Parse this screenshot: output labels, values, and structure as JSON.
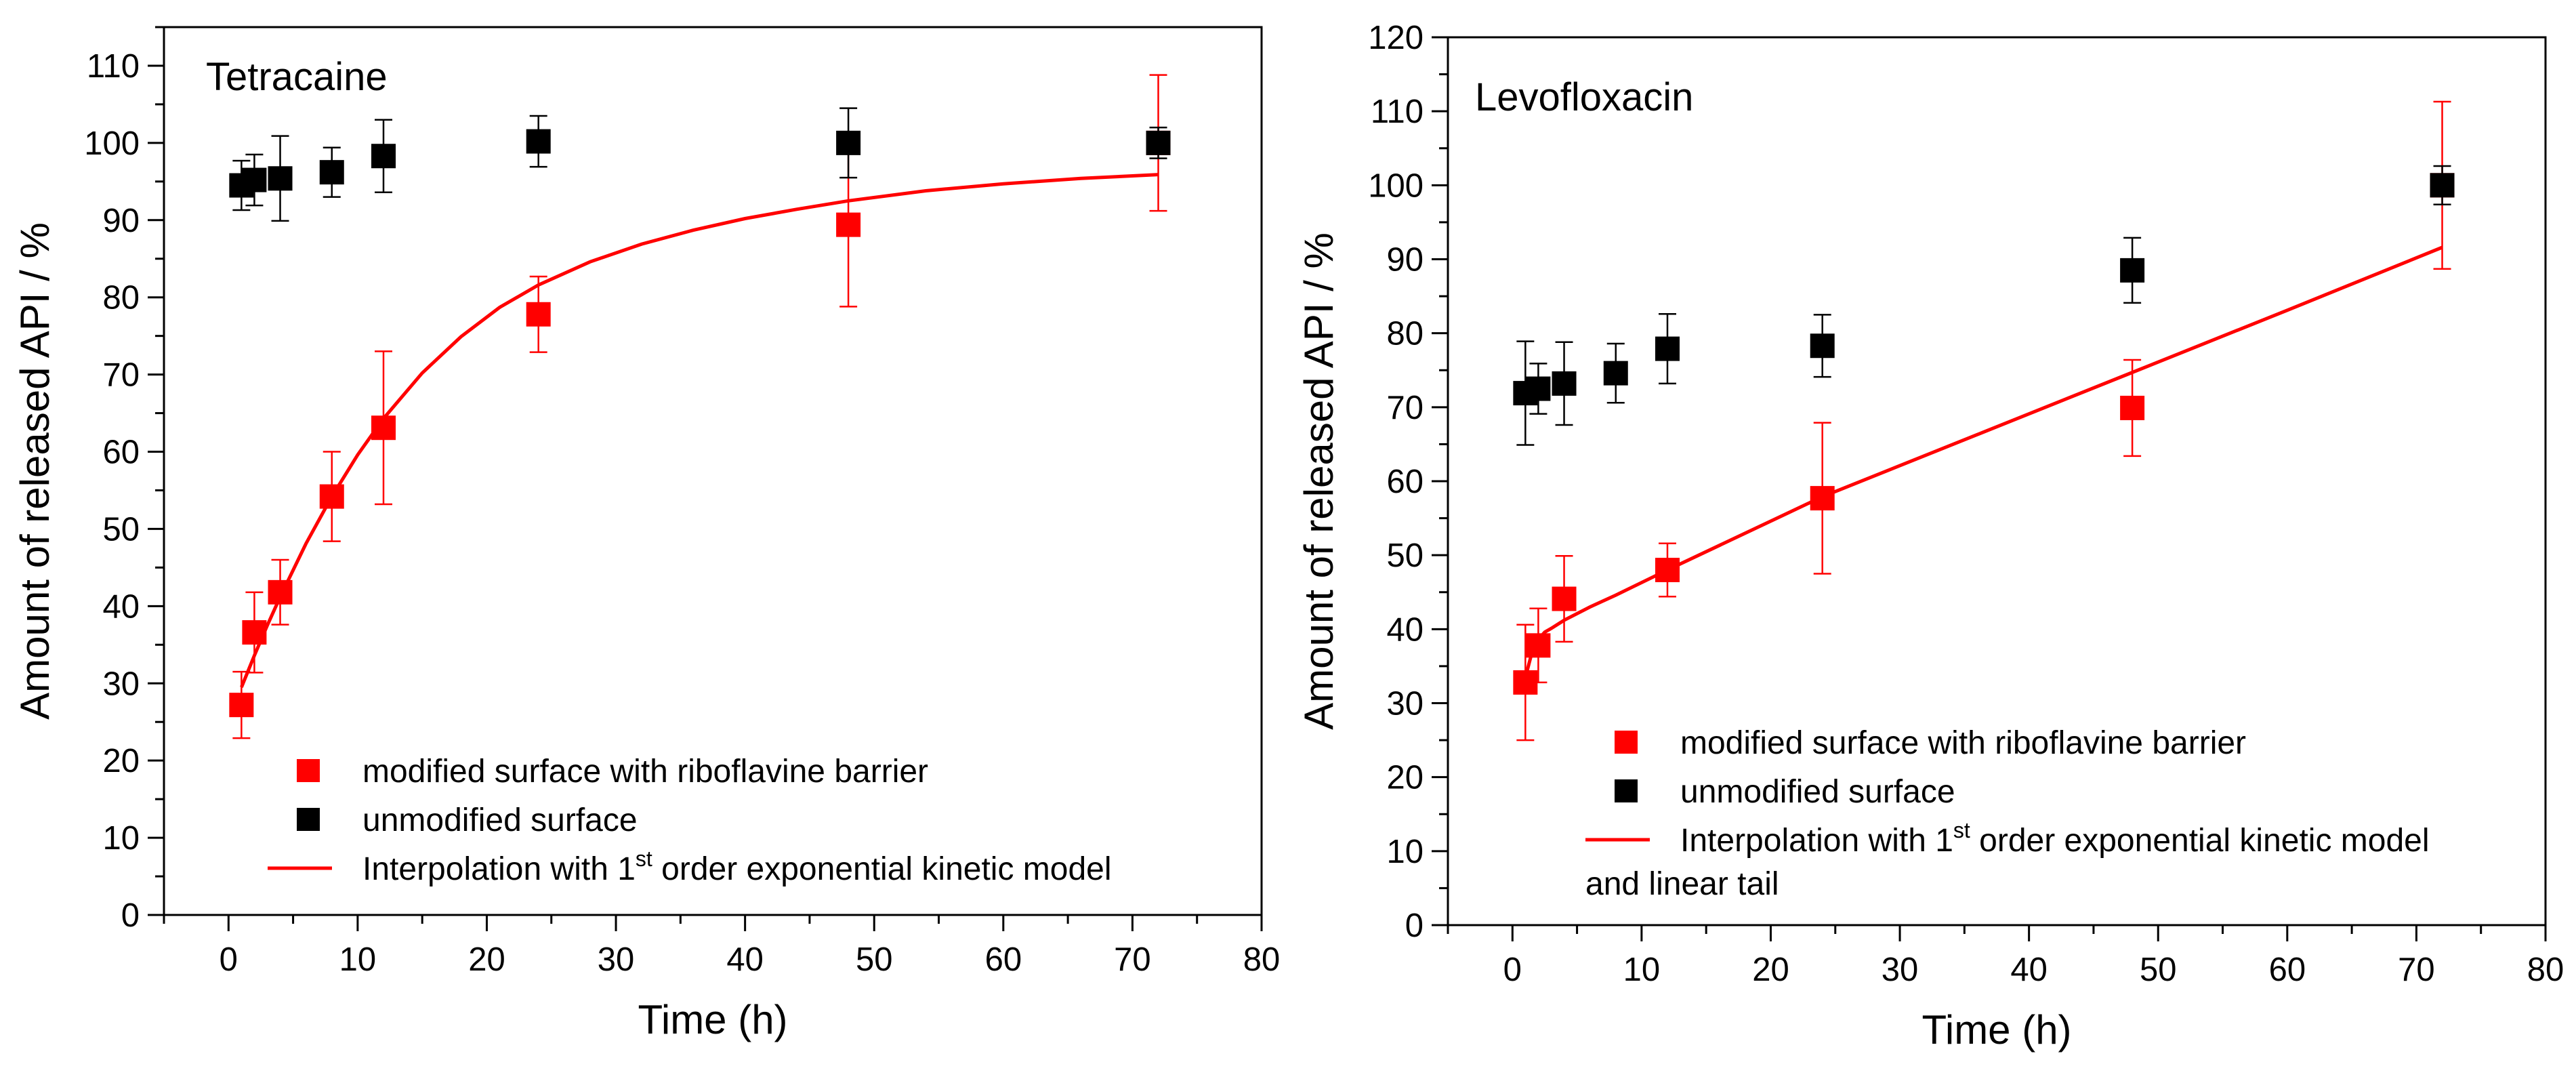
{
  "chart_data": [
    {
      "type": "scatter",
      "title": "Tetracaine",
      "xlabel": "Time (h)",
      "ylabel": "Amount of released API / %",
      "xlim": [
        -5,
        80
      ],
      "ylim": [
        0,
        115
      ],
      "x_ticks": [
        0,
        10,
        20,
        30,
        40,
        50,
        60,
        70,
        80
      ],
      "y_ticks": [
        0,
        10,
        20,
        30,
        40,
        50,
        60,
        70,
        80,
        90,
        100,
        110
      ],
      "grid": false,
      "legend_position": "bottom-right",
      "legend": [
        {
          "kind": "marker",
          "color": "#ff0000",
          "parts": [
            "modified surface with riboflavine barrier"
          ]
        },
        {
          "kind": "marker",
          "color": "#000000",
          "parts": [
            "unmodified surface"
          ]
        },
        {
          "kind": "line",
          "color": "#ff0000",
          "parts": [
            "Interpolation with 1",
            "st",
            " order exponential kinetic model"
          ]
        }
      ],
      "series": [
        {
          "name": "modified surface with riboflavine barrier",
          "color": "#ff0000",
          "points": [
            {
              "x": 1,
              "y": 27.2,
              "err": 4.3
            },
            {
              "x": 2,
              "y": 36.6,
              "err": 5.2
            },
            {
              "x": 4,
              "y": 41.8,
              "err": 4.2
            },
            {
              "x": 8,
              "y": 54.2,
              "err": 5.8
            },
            {
              "x": 12,
              "y": 63.1,
              "err": 9.9
            },
            {
              "x": 24,
              "y": 77.8,
              "err": 4.9
            },
            {
              "x": 48,
              "y": 89.4,
              "err": 10.6
            },
            {
              "x": 72,
              "y": 100,
              "err": 8.8
            }
          ]
        },
        {
          "name": "unmodified surface",
          "color": "#000000",
          "points": [
            {
              "x": 1,
              "y": 94.5,
              "err": 3.2
            },
            {
              "x": 2,
              "y": 95.2,
              "err": 3.3
            },
            {
              "x": 4,
              "y": 95.4,
              "err": 5.5
            },
            {
              "x": 8,
              "y": 96.2,
              "err": 3.2
            },
            {
              "x": 12,
              "y": 98.3,
              "err": 4.7
            },
            {
              "x": 24,
              "y": 100.2,
              "err": 3.3
            },
            {
              "x": 48,
              "y": 100,
              "err": 4.5
            },
            {
              "x": 72,
              "y": 100,
              "err": 2.0
            }
          ]
        },
        {
          "name": "Interpolation with 1st order exponential kinetic model",
          "type": "line",
          "color": "#ff0000",
          "x": [
            1,
            2,
            3,
            4,
            6,
            8,
            10,
            12,
            15,
            18,
            21,
            24,
            28,
            32,
            36,
            40,
            44,
            48,
            54,
            60,
            66,
            72
          ],
          "y": [
            29.5,
            33.6,
            37.5,
            41.2,
            48.1,
            54.2,
            59.6,
            64.3,
            70.2,
            74.9,
            78.7,
            81.6,
            84.6,
            86.9,
            88.7,
            90.2,
            91.4,
            92.5,
            93.8,
            94.7,
            95.4,
            95.9
          ]
        }
      ]
    },
    {
      "type": "scatter",
      "title": "Levofloxacin",
      "xlabel": "Time (h)",
      "ylabel": "Amount of released API / %",
      "xlim": [
        -5,
        80
      ],
      "ylim": [
        0,
        120
      ],
      "x_ticks": [
        0,
        10,
        20,
        30,
        40,
        50,
        60,
        70,
        80
      ],
      "y_ticks": [
        0,
        10,
        20,
        30,
        40,
        50,
        60,
        70,
        80,
        90,
        100,
        110,
        120
      ],
      "grid": false,
      "legend_position": "bottom-right",
      "legend": [
        {
          "kind": "marker",
          "color": "#ff0000",
          "parts": [
            "modified surface with riboflavine barrier"
          ]
        },
        {
          "kind": "marker",
          "color": "#000000",
          "parts": [
            "unmodified surface"
          ]
        },
        {
          "kind": "line",
          "color": "#ff0000",
          "parts": [
            "Interpolation with 1",
            "st",
            " order exponential kinetic model"
          ],
          "second_line": "and linear tail"
        }
      ],
      "series": [
        {
          "name": "modified surface with riboflavine barrier",
          "color": "#ff0000",
          "points": [
            {
              "x": 1,
              "y": 32.8,
              "err": 7.8
            },
            {
              "x": 2,
              "y": 37.8,
              "err": 5.0
            },
            {
              "x": 4,
              "y": 44.1,
              "err": 5.8
            },
            {
              "x": 12,
              "y": 48.0,
              "err": 3.6
            },
            {
              "x": 24,
              "y": 57.7,
              "err": 10.2
            },
            {
              "x": 48,
              "y": 69.9,
              "err": 6.5
            },
            {
              "x": 72,
              "y": 100,
              "err": 11.3
            }
          ]
        },
        {
          "name": "unmodified surface",
          "color": "#000000",
          "points": [
            {
              "x": 1,
              "y": 71.9,
              "err": 7.0
            },
            {
              "x": 2,
              "y": 72.5,
              "err": 3.4
            },
            {
              "x": 4,
              "y": 73.2,
              "err": 5.6
            },
            {
              "x": 8,
              "y": 74.6,
              "err": 4.0
            },
            {
              "x": 12,
              "y": 77.9,
              "err": 4.7
            },
            {
              "x": 24,
              "y": 78.3,
              "err": 4.2
            },
            {
              "x": 48,
              "y": 88.5,
              "err": 4.4
            },
            {
              "x": 72,
              "y": 100,
              "err": 2.6
            }
          ]
        },
        {
          "name": "Interpolation with 1st order exponential kinetic model and linear tail",
          "type": "line",
          "color": "#ff0000",
          "x": [
            1,
            1.5,
            2,
            2.5,
            3,
            4,
            6,
            8,
            12,
            24,
            36,
            48,
            60,
            72
          ],
          "y": [
            33.5,
            36.8,
            38.6,
            39.6,
            40.1,
            41.2,
            43.0,
            44.6,
            48.0,
            57.9,
            66.3,
            74.7,
            83.1,
            91.6
          ]
        }
      ]
    }
  ]
}
